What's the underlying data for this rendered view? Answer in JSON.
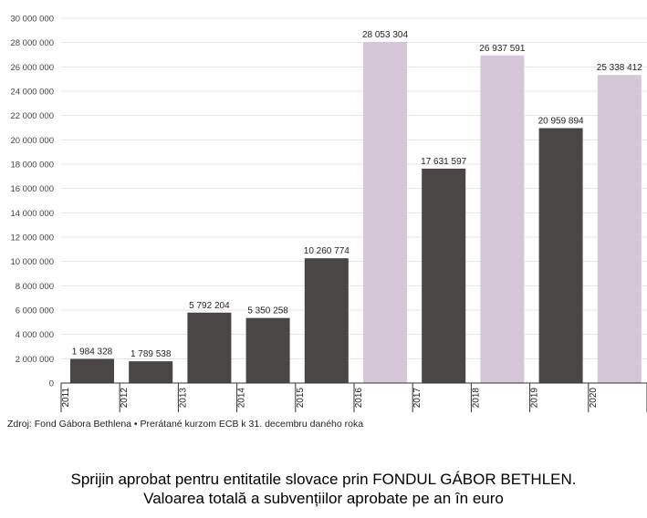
{
  "chart_data": {
    "type": "bar",
    "categories": [
      "2011",
      "2012",
      "2013",
      "2014",
      "2015",
      "2016",
      "2017",
      "2018",
      "2019",
      "2020"
    ],
    "values": [
      1984328,
      1789538,
      5792204,
      5350258,
      10260774,
      28053304,
      17631597,
      26937591,
      20959894,
      25338412
    ],
    "value_labels": [
      "1 984 328",
      "1 789 538",
      "5 792 204",
      "5 350 258",
      "10 260 774",
      "28 053 304",
      "17 631 597",
      "26 937 591",
      "20 959 894",
      "25 338 412"
    ],
    "ylim": [
      0,
      30000000
    ],
    "yticks": [
      0,
      2000000,
      4000000,
      6000000,
      8000000,
      10000000,
      12000000,
      14000000,
      16000000,
      18000000,
      20000000,
      22000000,
      24000000,
      26000000,
      28000000,
      30000000
    ],
    "ytick_labels": [
      "0",
      "2 000 000",
      "4 000 000",
      "6 000 000",
      "8 000 000",
      "10 000 000",
      "12 000 000",
      "14 000 000",
      "16 000 000",
      "18 000 000",
      "20 000 000",
      "22 000 000",
      "24 000 000",
      "26 000 000",
      "28 000 000",
      "30 000 000"
    ],
    "bar_colors": [
      "#4a4646",
      "#4a4646",
      "#4a4646",
      "#4a4646",
      "#4a4646",
      "#d5c7d8",
      "#4a4646",
      "#d5c7d8",
      "#4a4646",
      "#d5c7d8"
    ],
    "grid": true,
    "gridColor": "#e3e3e3"
  },
  "source_text": "Zdroj: Fond Gábora Bethlena • Prerátané kurzom ECB k 31. decembru daného roka",
  "caption": {
    "line1": "Sprijin aprobat pentru entitatile slovace prin FONDUL GÁBOR BETHLEN.",
    "line2": "Valoarea totală a subvențiilor aprobate pe an în euro"
  }
}
